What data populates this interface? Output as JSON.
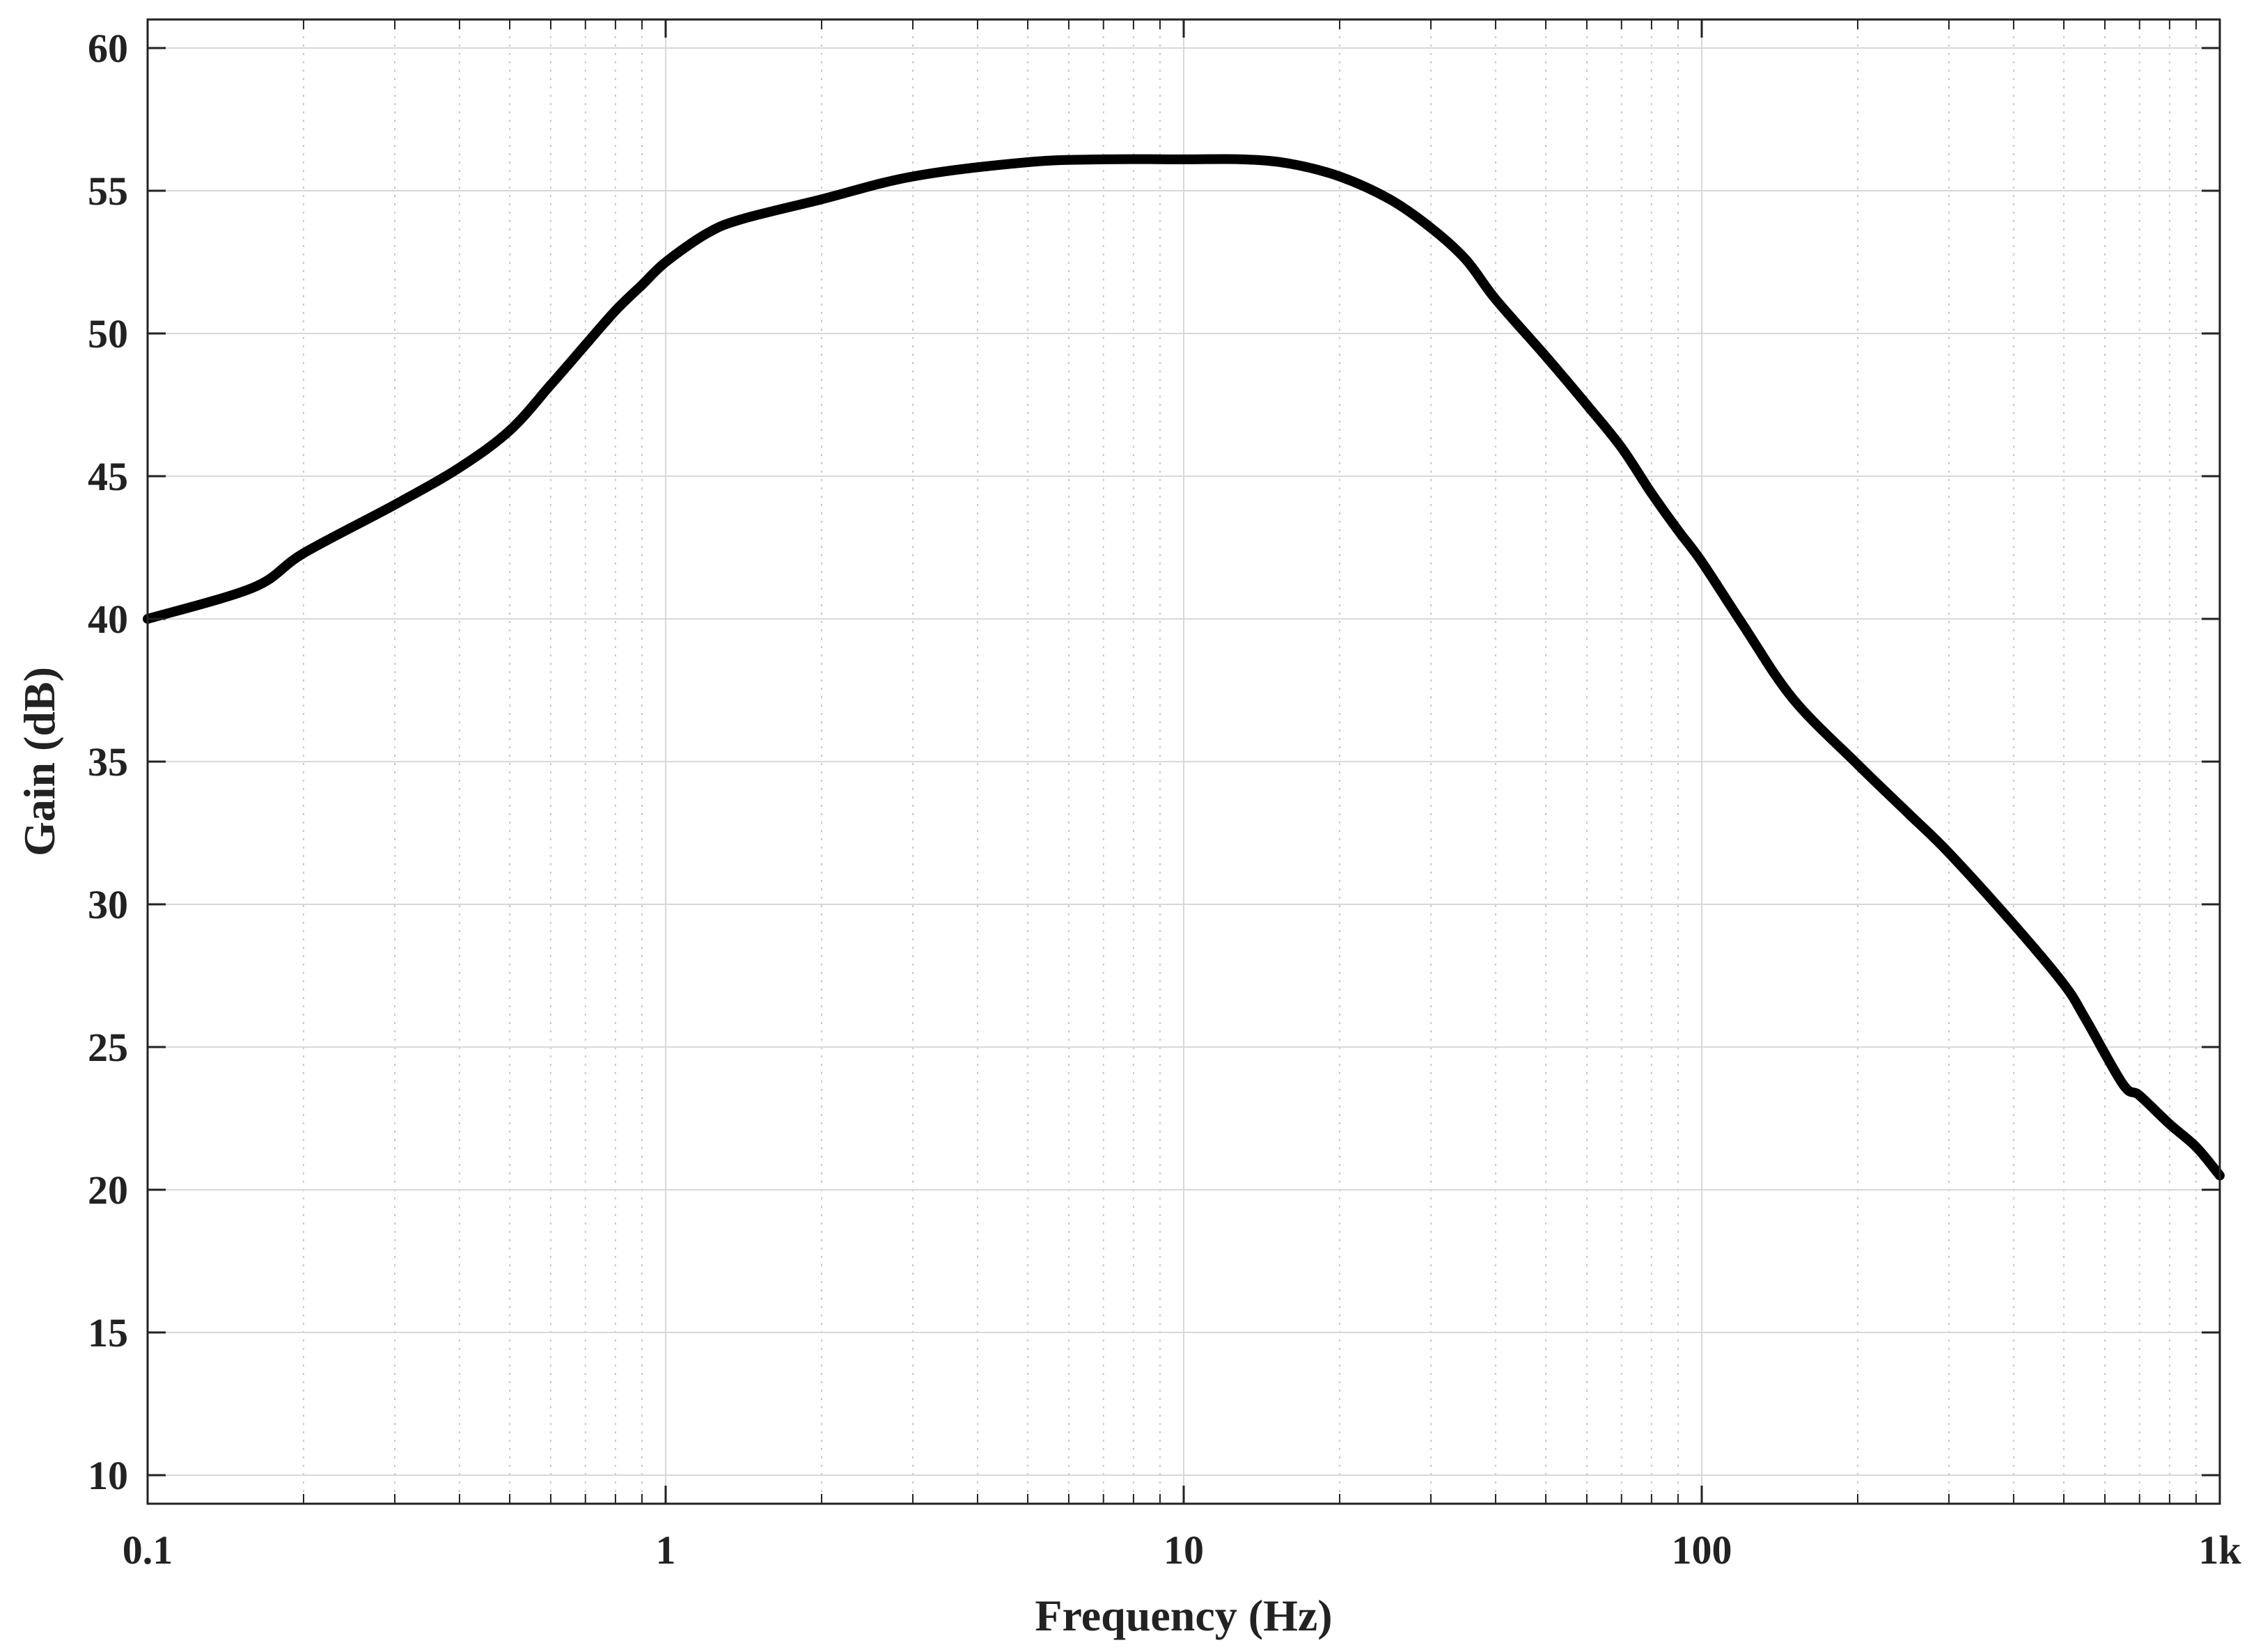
{
  "chart_data": {
    "type": "line",
    "title": "",
    "xlabel": "Frequency (Hz)",
    "ylabel": "Gain (dB)",
    "x_scale": "log",
    "xlim": [
      0.1,
      1000
    ],
    "ylim": [
      9,
      61
    ],
    "x_ticks": [
      {
        "value": 0.1,
        "label": "0.1"
      },
      {
        "value": 1,
        "label": "1"
      },
      {
        "value": 10,
        "label": "10"
      },
      {
        "value": 100,
        "label": "100"
      },
      {
        "value": 1000,
        "label": "1k"
      }
    ],
    "y_ticks": [
      {
        "value": 10,
        "label": "10"
      },
      {
        "value": 15,
        "label": "15"
      },
      {
        "value": 20,
        "label": "20"
      },
      {
        "value": 25,
        "label": "25"
      },
      {
        "value": 30,
        "label": "30"
      },
      {
        "value": 35,
        "label": "35"
      },
      {
        "value": 40,
        "label": "40"
      },
      {
        "value": 45,
        "label": "45"
      },
      {
        "value": 50,
        "label": "50"
      },
      {
        "value": 55,
        "label": "55"
      },
      {
        "value": 60,
        "label": "60"
      }
    ],
    "grid": true,
    "minor_grid_x": true,
    "legend": "none",
    "line_color": "#000000",
    "series": [
      {
        "x": [
          0.1,
          0.16,
          0.2,
          0.3,
          0.4,
          0.5,
          0.6,
          0.7,
          0.8,
          0.9,
          1.0,
          1.2,
          1.4,
          2,
          3,
          5,
          7,
          10,
          13,
          16,
          20,
          25,
          30,
          35,
          40,
          50,
          60,
          70,
          80,
          90,
          100,
          120,
          150,
          200,
          250,
          300,
          400,
          500,
          550,
          650,
          700,
          800,
          900,
          1000
        ],
        "y": [
          40.0,
          41.1,
          42.3,
          44.0,
          45.3,
          46.6,
          48.2,
          49.6,
          50.8,
          51.7,
          52.5,
          53.5,
          54.0,
          54.7,
          55.5,
          56.0,
          56.1,
          56.1,
          56.1,
          55.95,
          55.5,
          54.7,
          53.7,
          52.6,
          51.2,
          49.2,
          47.5,
          46.0,
          44.4,
          43.1,
          42.0,
          39.8,
          37.2,
          34.9,
          33.2,
          31.8,
          29.3,
          27.2,
          26.0,
          23.7,
          23.3,
          22.3,
          21.5,
          20.5
        ]
      }
    ]
  }
}
